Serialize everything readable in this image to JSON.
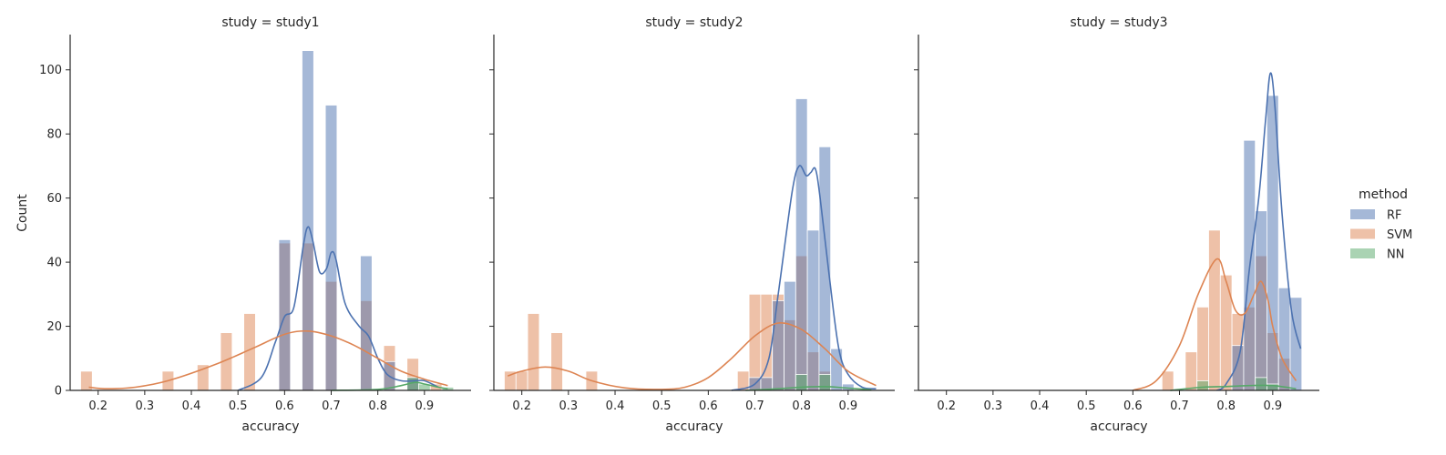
{
  "chart_data": {
    "type": "histogram",
    "ylabel": "Count",
    "ylim": [
      0,
      111
    ],
    "xlim": [
      0.14,
      1.0
    ],
    "yticks": [
      0,
      20,
      40,
      60,
      80,
      100
    ],
    "xticks": [
      0.2,
      0.3,
      0.4,
      0.5,
      0.6,
      0.7,
      0.8,
      0.9
    ],
    "xtick_labels": [
      "0.2",
      "0.3",
      "0.4",
      "0.5",
      "0.6",
      "0.7",
      "0.8",
      "0.9"
    ],
    "ytick_labels": [
      "0",
      "20",
      "40",
      "60",
      "80",
      "100"
    ],
    "legend": {
      "title": "method",
      "placement": "right",
      "entries": [
        {
          "name": "RF",
          "color": "#4c72b0"
        },
        {
          "name": "SVM",
          "color": "#dd8452"
        },
        {
          "name": "NN",
          "color": "#55a868"
        }
      ]
    },
    "bin_width": 0.025,
    "colors": {
      "RF": "#4c72b0",
      "SVM": "#dd8452",
      "NN": "#55a868"
    },
    "panels": [
      {
        "title": "study = study1",
        "xlabel": "accuracy",
        "series": [
          {
            "name": "RF",
            "bars": [
              [
                0.6,
                47
              ],
              [
                0.65,
                106
              ],
              [
                0.7,
                89
              ],
              [
                0.775,
                42
              ],
              [
                0.825,
                9
              ],
              [
                0.875,
                4
              ]
            ],
            "kde": [
              [
                0.5,
                0
              ],
              [
                0.55,
                4
              ],
              [
                0.58,
                15
              ],
              [
                0.6,
                23
              ],
              [
                0.62,
                26
              ],
              [
                0.64,
                45
              ],
              [
                0.65,
                51
              ],
              [
                0.66,
                47
              ],
              [
                0.675,
                37
              ],
              [
                0.69,
                38
              ],
              [
                0.7,
                43
              ],
              [
                0.71,
                41
              ],
              [
                0.73,
                27
              ],
              [
                0.76,
                20
              ],
              [
                0.78,
                17
              ],
              [
                0.8,
                10
              ],
              [
                0.82,
                5
              ],
              [
                0.85,
                3
              ],
              [
                0.88,
                3
              ],
              [
                0.9,
                3
              ],
              [
                0.93,
                1
              ]
            ]
          },
          {
            "name": "SVM",
            "bars": [
              [
                0.175,
                6
              ],
              [
                0.35,
                6
              ],
              [
                0.425,
                8
              ],
              [
                0.475,
                18
              ],
              [
                0.525,
                24
              ],
              [
                0.6,
                46
              ],
              [
                0.65,
                46
              ],
              [
                0.7,
                34
              ],
              [
                0.775,
                28
              ],
              [
                0.825,
                14
              ],
              [
                0.875,
                10
              ],
              [
                0.925,
                2
              ]
            ],
            "kde": [
              [
                0.18,
                1
              ],
              [
                0.22,
                0.5
              ],
              [
                0.28,
                1
              ],
              [
                0.35,
                3
              ],
              [
                0.45,
                8
              ],
              [
                0.53,
                13
              ],
              [
                0.6,
                17.5
              ],
              [
                0.65,
                18.5
              ],
              [
                0.7,
                17
              ],
              [
                0.75,
                14
              ],
              [
                0.8,
                10
              ],
              [
                0.85,
                6
              ],
              [
                0.9,
                3.5
              ],
              [
                0.95,
                1.5
              ]
            ]
          },
          {
            "name": "NN",
            "bars": [
              [
                0.875,
                4
              ],
              [
                0.9,
                2
              ],
              [
                0.95,
                1
              ]
            ],
            "kde": [
              [
                0.7,
                0
              ],
              [
                0.8,
                0.3
              ],
              [
                0.85,
                1.5
              ],
              [
                0.88,
                2.5
              ],
              [
                0.9,
                2
              ],
              [
                0.93,
                1
              ],
              [
                0.95,
                0.5
              ]
            ]
          }
        ]
      },
      {
        "title": "study = study2",
        "xlabel": "accuracy",
        "series": [
          {
            "name": "RF",
            "bars": [
              [
                0.7,
                4
              ],
              [
                0.725,
                4
              ],
              [
                0.75,
                28
              ],
              [
                0.775,
                34
              ],
              [
                0.8,
                91
              ],
              [
                0.825,
                50
              ],
              [
                0.85,
                76
              ],
              [
                0.875,
                13
              ],
              [
                0.9,
                2
              ]
            ],
            "kde": [
              [
                0.65,
                0
              ],
              [
                0.7,
                2
              ],
              [
                0.73,
                10
              ],
              [
                0.75,
                30
              ],
              [
                0.78,
                62
              ],
              [
                0.795,
                70
              ],
              [
                0.81,
                67
              ],
              [
                0.82,
                68
              ],
              [
                0.83,
                69
              ],
              [
                0.84,
                60
              ],
              [
                0.86,
                35
              ],
              [
                0.88,
                13
              ],
              [
                0.9,
                5
              ],
              [
                0.93,
                1
              ],
              [
                0.96,
                0.5
              ]
            ]
          },
          {
            "name": "SVM",
            "bars": [
              [
                0.175,
                6
              ],
              [
                0.2,
                6
              ],
              [
                0.225,
                24
              ],
              [
                0.275,
                18
              ],
              [
                0.35,
                6
              ],
              [
                0.675,
                6
              ],
              [
                0.7,
                30
              ],
              [
                0.725,
                30
              ],
              [
                0.75,
                30
              ],
              [
                0.775,
                22
              ],
              [
                0.8,
                42
              ],
              [
                0.825,
                12
              ],
              [
                0.85,
                6
              ]
            ],
            "kde": [
              [
                0.17,
                4.5
              ],
              [
                0.2,
                6
              ],
              [
                0.25,
                7.3
              ],
              [
                0.3,
                6
              ],
              [
                0.35,
                3
              ],
              [
                0.42,
                0.8
              ],
              [
                0.5,
                0.3
              ],
              [
                0.55,
                1
              ],
              [
                0.6,
                4
              ],
              [
                0.65,
                10
              ],
              [
                0.7,
                17
              ],
              [
                0.75,
                21
              ],
              [
                0.8,
                19
              ],
              [
                0.85,
                13
              ],
              [
                0.9,
                6
              ],
              [
                0.96,
                1.5
              ]
            ]
          },
          {
            "name": "NN",
            "bars": [
              [
                0.8,
                5
              ],
              [
                0.85,
                5
              ]
            ],
            "kde": [
              [
                0.68,
                0
              ],
              [
                0.75,
                0.5
              ],
              [
                0.8,
                1
              ],
              [
                0.85,
                1.2
              ],
              [
                0.9,
                0.7
              ],
              [
                0.95,
                0.2
              ]
            ]
          }
        ]
      },
      {
        "title": "study = study3",
        "xlabel": "accuracy",
        "series": [
          {
            "name": "RF",
            "bars": [
              [
                0.825,
                14
              ],
              [
                0.85,
                78
              ],
              [
                0.875,
                56
              ],
              [
                0.9,
                92
              ],
              [
                0.925,
                32
              ],
              [
                0.95,
                29
              ]
            ],
            "kde": [
              [
                0.78,
                0
              ],
              [
                0.8,
                2
              ],
              [
                0.83,
                12
              ],
              [
                0.85,
                38
              ],
              [
                0.87,
                60
              ],
              [
                0.885,
                85
              ],
              [
                0.895,
                99
              ],
              [
                0.905,
                88
              ],
              [
                0.92,
                55
              ],
              [
                0.94,
                25
              ],
              [
                0.96,
                13
              ]
            ]
          },
          {
            "name": "SVM",
            "bars": [
              [
                0.675,
                6
              ],
              [
                0.725,
                12
              ],
              [
                0.75,
                26
              ],
              [
                0.775,
                50
              ],
              [
                0.8,
                36
              ],
              [
                0.825,
                24
              ],
              [
                0.85,
                26
              ],
              [
                0.875,
                42
              ],
              [
                0.9,
                18
              ],
              [
                0.925,
                10
              ]
            ],
            "kde": [
              [
                0.6,
                0
              ],
              [
                0.65,
                3
              ],
              [
                0.7,
                14
              ],
              [
                0.74,
                30
              ],
              [
                0.78,
                41
              ],
              [
                0.8,
                34
              ],
              [
                0.82,
                25
              ],
              [
                0.84,
                24
              ],
              [
                0.86,
                30
              ],
              [
                0.875,
                34
              ],
              [
                0.89,
                28
              ],
              [
                0.9,
                20
              ],
              [
                0.92,
                10
              ],
              [
                0.95,
                3
              ]
            ]
          },
          {
            "name": "NN",
            "bars": [
              [
                0.75,
                3
              ],
              [
                0.875,
                4
              ],
              [
                0.9,
                2
              ]
            ],
            "kde": [
              [
                0.68,
                0
              ],
              [
                0.75,
                1
              ],
              [
                0.8,
                1.2
              ],
              [
                0.85,
                1.5
              ],
              [
                0.9,
                1.5
              ],
              [
                0.95,
                0.5
              ]
            ]
          }
        ]
      }
    ]
  }
}
